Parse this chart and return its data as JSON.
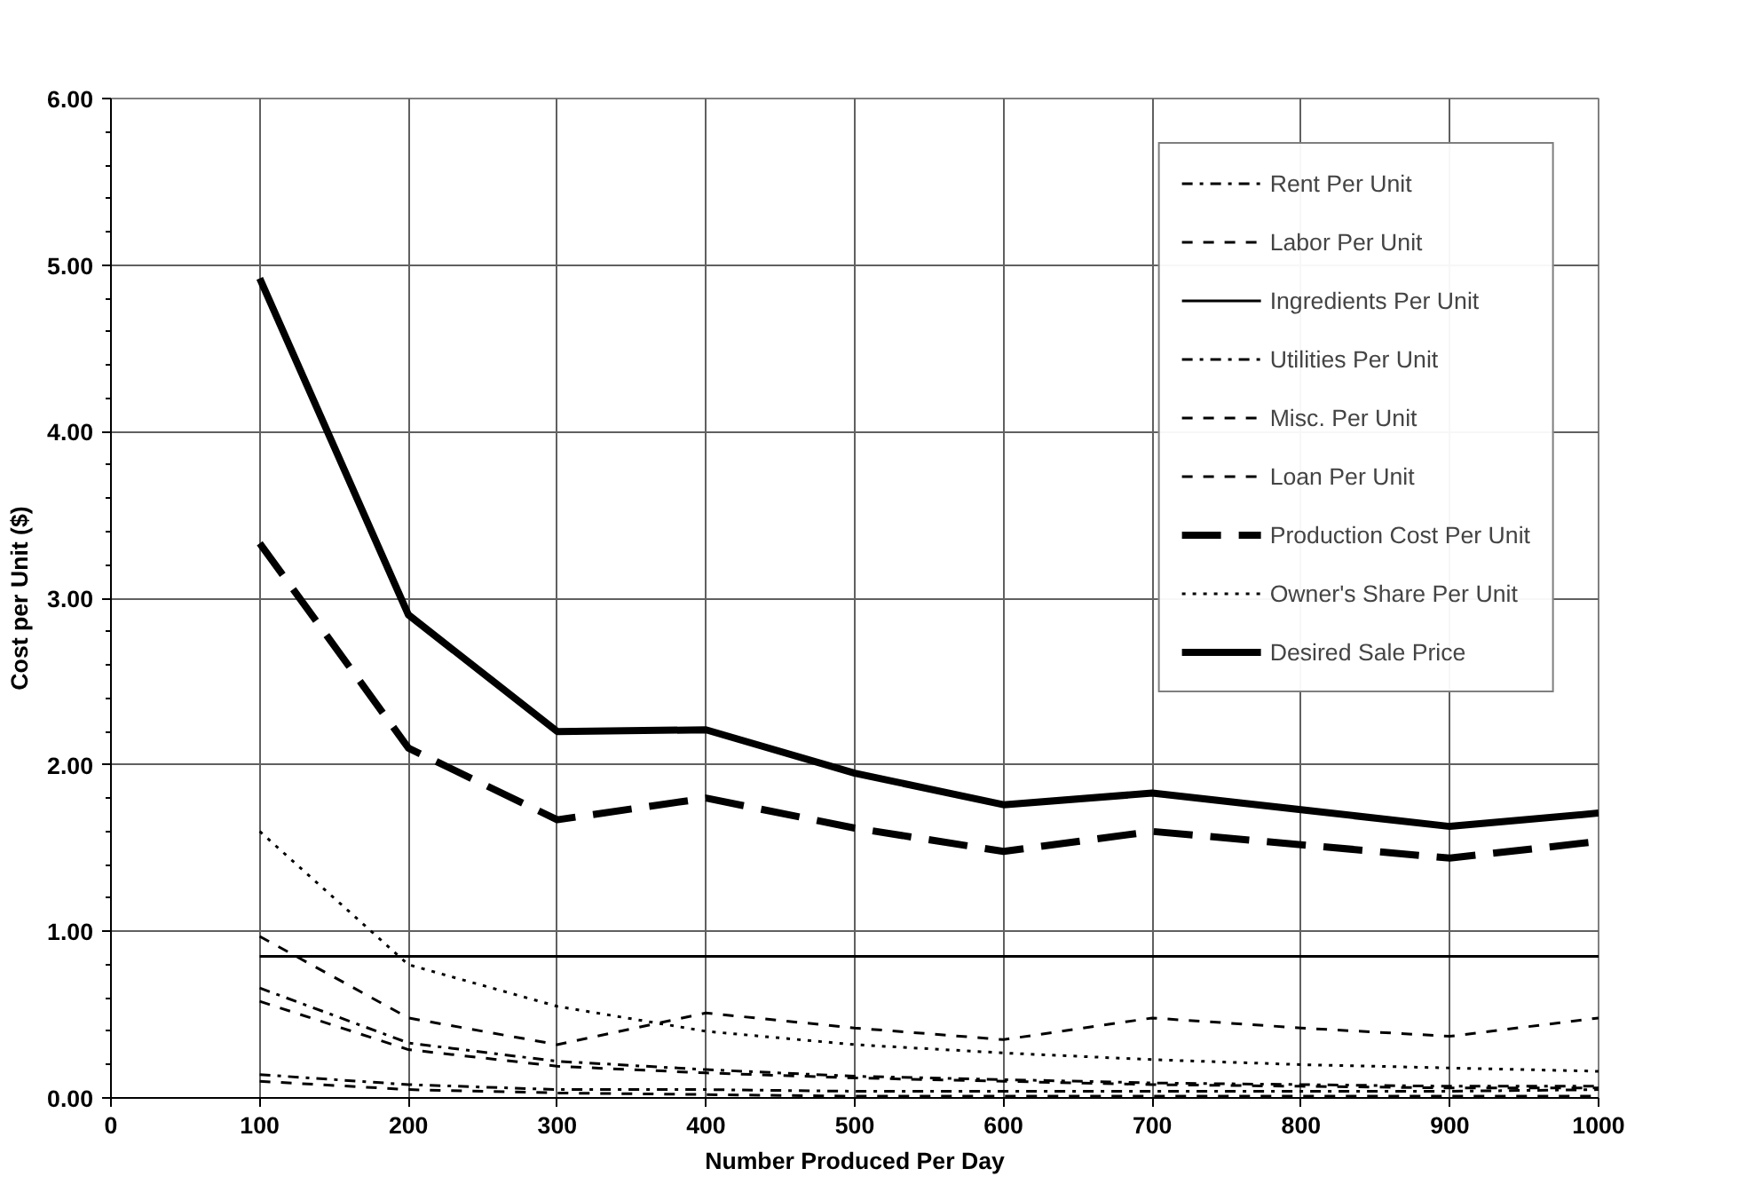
{
  "chart_data": {
    "type": "line",
    "xlabel": "Number Produced Per Day",
    "ylabel": "Cost per Unit ($)",
    "x": [
      100,
      200,
      300,
      400,
      500,
      600,
      700,
      800,
      900,
      1000
    ],
    "xlim": [
      0,
      1000
    ],
    "xticks": [
      0,
      100,
      200,
      300,
      400,
      500,
      600,
      700,
      800,
      900,
      1000
    ],
    "ylim": [
      0,
      6
    ],
    "yticks": [
      {
        "value": 0,
        "label": "0.00"
      },
      {
        "value": 1,
        "label": "1.00"
      },
      {
        "value": 2,
        "label": "2.00"
      },
      {
        "value": 3,
        "label": "3.00"
      },
      {
        "value": 4,
        "label": "4.00"
      },
      {
        "value": 5,
        "label": "5.00"
      },
      {
        "value": 6,
        "label": "6.00"
      }
    ],
    "grid": true,
    "legend": "top right",
    "series": [
      {
        "name": "Rent Per Unit",
        "color": "#000000",
        "line_style": "dashdot",
        "values": [
          0.66,
          0.33,
          0.22,
          0.17,
          0.13,
          0.11,
          0.09,
          0.08,
          0.07,
          0.07
        ]
      },
      {
        "name": "Labor Per Unit",
        "color": "#000000",
        "line_style": "dashed",
        "values": [
          0.97,
          0.48,
          0.32,
          0.51,
          0.42,
          0.35,
          0.48,
          0.42,
          0.37,
          0.48
        ]
      },
      {
        "name": "Ingredients Per Unit",
        "color": "#000000",
        "line_style": "solid",
        "values": [
          0.85,
          0.85,
          0.85,
          0.85,
          0.85,
          0.85,
          0.85,
          0.85,
          0.85,
          0.85
        ]
      },
      {
        "name": "Utilities Per Unit",
        "color": "#000000",
        "line_style": "dashdot",
        "values": [
          0.14,
          0.08,
          0.05,
          0.05,
          0.04,
          0.04,
          0.04,
          0.04,
          0.04,
          0.05
        ]
      },
      {
        "name": "Misc. Per Unit",
        "color": "#000000",
        "line_style": "dashed",
        "values": [
          0.1,
          0.05,
          0.03,
          0.02,
          0.01,
          0.01,
          0.01,
          0.01,
          0.01,
          0.01
        ]
      },
      {
        "name": "Loan Per Unit",
        "color": "#000000",
        "line_style": "dashed",
        "values": [
          0.58,
          0.29,
          0.19,
          0.15,
          0.12,
          0.1,
          0.08,
          0.07,
          0.06,
          0.06
        ]
      },
      {
        "name": "Production Cost Per Unit",
        "color": "#000000",
        "line_style": "dashed",
        "values": [
          3.33,
          2.1,
          1.67,
          1.8,
          1.62,
          1.48,
          1.6,
          1.52,
          1.44,
          1.54
        ]
      },
      {
        "name": "Owner's Share Per Unit",
        "color": "#000000",
        "line_style": "dotted",
        "values": [
          1.6,
          0.8,
          0.55,
          0.4,
          0.32,
          0.27,
          0.23,
          0.2,
          0.18,
          0.16
        ]
      },
      {
        "name": "Desired Sale Price",
        "color": "#000000",
        "line_style": "solid",
        "values": [
          4.92,
          2.9,
          2.2,
          2.21,
          1.95,
          1.76,
          1.83,
          1.73,
          1.63,
          1.71
        ]
      }
    ]
  }
}
